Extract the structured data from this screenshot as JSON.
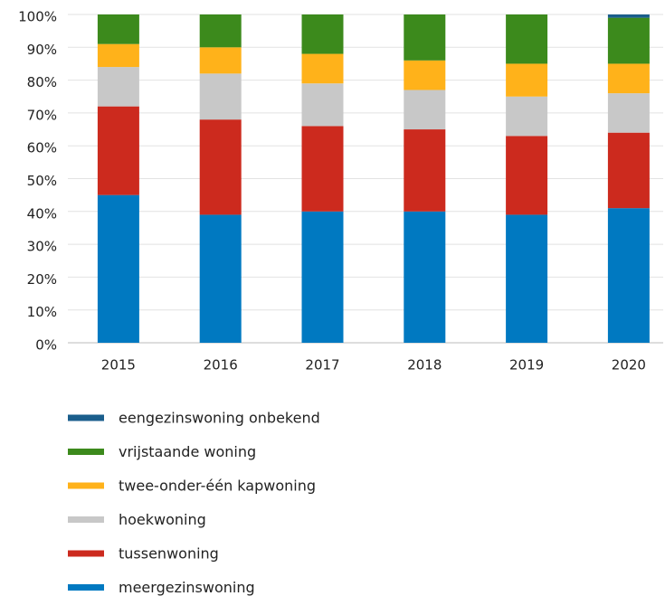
{
  "chart_data": {
    "type": "stacked_bar",
    "categories": [
      "2015",
      "2016",
      "2017",
      "2018",
      "2019",
      "2020"
    ],
    "series": [
      {
        "name": "meergezinswoning",
        "color": "#0079c1",
        "values": [
          45,
          39,
          40,
          40,
          39,
          41
        ]
      },
      {
        "name": "tussenwoning",
        "color": "#cc2a1e",
        "values": [
          27,
          29,
          26,
          25,
          24,
          23
        ]
      },
      {
        "name": "hoekwoning",
        "color": "#c8c8c8",
        "values": [
          12,
          14,
          13,
          12,
          12,
          12
        ]
      },
      {
        "name": "twee-onder-één kapwoning",
        "color": "#ffb21a",
        "values": [
          7,
          8,
          9,
          9,
          10,
          9
        ]
      },
      {
        "name": "vrijstaande woning",
        "color": "#3c8a1c",
        "values": [
          9,
          10,
          12,
          14,
          15,
          14
        ]
      },
      {
        "name": "eengezinswoning onbekend",
        "color": "#1a5e8c",
        "values": [
          0,
          0,
          0,
          0,
          0,
          1
        ]
      }
    ],
    "ylim": [
      0,
      100
    ],
    "yticks": [
      {
        "value": 0,
        "label": "0%"
      },
      {
        "value": 10,
        "label": "10%"
      },
      {
        "value": 20,
        "label": "20%"
      },
      {
        "value": 30,
        "label": "30%"
      },
      {
        "value": 40,
        "label": "40%"
      },
      {
        "value": 50,
        "label": "50%"
      },
      {
        "value": 60,
        "label": "60%"
      },
      {
        "value": 70,
        "label": "70%"
      },
      {
        "value": 80,
        "label": "80%"
      },
      {
        "value": 90,
        "label": "90%"
      },
      {
        "value": 100,
        "label": "100%"
      }
    ],
    "grid": true,
    "legend": "bottom"
  }
}
